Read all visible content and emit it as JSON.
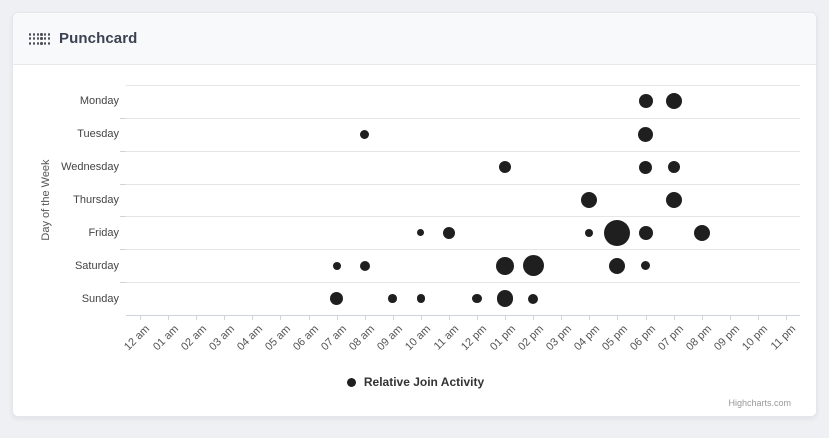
{
  "header": {
    "icon": "dots-grid-icon",
    "title": "Punchcard"
  },
  "colors": {
    "marker": "#1f1f1f",
    "card_bg": "#ffffff",
    "page_bg": "#eef0f4"
  },
  "chart_data": {
    "type": "bubble",
    "title": "Punchcard",
    "ylabel": "Day of the Week",
    "xlabel": "",
    "legend_label": "Relative Join Activity",
    "legend_position": "bottom-center",
    "grid": "horizontal",
    "marker_color": "#1f1f1f",
    "size_metric": "relative join activity (bubble radius px, estimated)",
    "x_categories": [
      "12 am",
      "01 am",
      "02 am",
      "03 am",
      "04 am",
      "05 am",
      "06 am",
      "07 am",
      "08 am",
      "09 am",
      "10 am",
      "11 am",
      "12 pm",
      "01 pm",
      "02 pm",
      "03 pm",
      "04 pm",
      "05 pm",
      "06 pm",
      "07 pm",
      "08 pm",
      "09 pm",
      "10 pm",
      "11 pm"
    ],
    "y_categories": [
      "Monday",
      "Tuesday",
      "Wednesday",
      "Thursday",
      "Friday",
      "Saturday",
      "Sunday"
    ],
    "points": [
      {
        "day": "Monday",
        "hour": "06 pm",
        "r": 7
      },
      {
        "day": "Monday",
        "hour": "07 pm",
        "r": 8
      },
      {
        "day": "Tuesday",
        "hour": "08 am",
        "r": 4.5
      },
      {
        "day": "Tuesday",
        "hour": "06 pm",
        "r": 7.5
      },
      {
        "day": "Wednesday",
        "hour": "01 pm",
        "r": 6
      },
      {
        "day": "Wednesday",
        "hour": "06 pm",
        "r": 6.5
      },
      {
        "day": "Wednesday",
        "hour": "07 pm",
        "r": 6
      },
      {
        "day": "Thursday",
        "hour": "04 pm",
        "r": 8
      },
      {
        "day": "Thursday",
        "hour": "07 pm",
        "r": 8
      },
      {
        "day": "Friday",
        "hour": "10 am",
        "r": 3.5
      },
      {
        "day": "Friday",
        "hour": "11 am",
        "r": 6.3
      },
      {
        "day": "Friday",
        "hour": "04 pm",
        "r": 4
      },
      {
        "day": "Friday",
        "hour": "05 pm",
        "r": 13
      },
      {
        "day": "Friday",
        "hour": "06 pm",
        "r": 7
      },
      {
        "day": "Friday",
        "hour": "08 pm",
        "r": 8
      },
      {
        "day": "Saturday",
        "hour": "07 am",
        "r": 4
      },
      {
        "day": "Saturday",
        "hour": "08 am",
        "r": 5
      },
      {
        "day": "Saturday",
        "hour": "01 pm",
        "r": 9
      },
      {
        "day": "Saturday",
        "hour": "02 pm",
        "r": 10.5
      },
      {
        "day": "Saturday",
        "hour": "05 pm",
        "r": 8
      },
      {
        "day": "Saturday",
        "hour": "06 pm",
        "r": 4.5
      },
      {
        "day": "Sunday",
        "hour": "07 am",
        "r": 6.5
      },
      {
        "day": "Sunday",
        "hour": "09 am",
        "r": 4.3
      },
      {
        "day": "Sunday",
        "hour": "10 am",
        "r": 4.3
      },
      {
        "day": "Sunday",
        "hour": "12 pm",
        "r": 4.7
      },
      {
        "day": "Sunday",
        "hour": "01 pm",
        "r": 8.3
      },
      {
        "day": "Sunday",
        "hour": "02 pm",
        "r": 5
      }
    ],
    "credits": "Highcharts.com"
  }
}
